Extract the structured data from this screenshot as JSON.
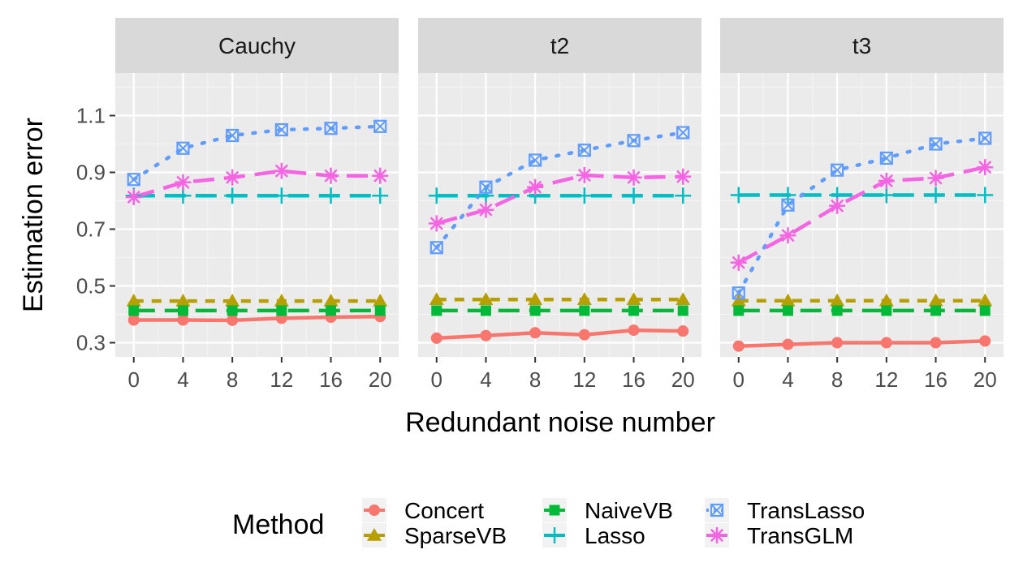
{
  "chart_data": {
    "type": "line",
    "xlabel": "Redundant noise number",
    "ylabel": "Estimation error",
    "x": [
      0,
      4,
      8,
      12,
      16,
      20
    ],
    "x_ticks": [
      "0",
      "4",
      "8",
      "12",
      "16",
      "20"
    ],
    "y_ticks": [
      "0.3",
      "0.5",
      "0.7",
      "0.9",
      "1.1"
    ],
    "y_tick_values": [
      0.3,
      0.5,
      0.7,
      0.9,
      1.1
    ],
    "xlim": [
      -1.5,
      21.5
    ],
    "ylim": [
      0.25,
      1.25
    ],
    "grid": true,
    "legend": {
      "title": "Method",
      "position": "bottom",
      "entries": [
        "Concert",
        "SparseVB",
        "NaiveVB",
        "Lasso",
        "TransLasso",
        "TransGLM"
      ]
    },
    "methods": [
      {
        "name": "Concert",
        "color": "#F8766D",
        "shape": "circle",
        "linetype": "solid"
      },
      {
        "name": "SparseVB",
        "color": "#B79F00",
        "shape": "triangle",
        "linetype": "dashed"
      },
      {
        "name": "NaiveVB",
        "color": "#00BA38",
        "shape": "square",
        "linetype": "longdash"
      },
      {
        "name": "Lasso",
        "color": "#00BFC4",
        "shape": "plus",
        "linetype": "longdash"
      },
      {
        "name": "TransLasso",
        "color": "#619CFF",
        "shape": "boxx",
        "linetype": "dotted"
      },
      {
        "name": "TransGLM",
        "color": "#F564E3",
        "shape": "asterisk",
        "linetype": "longdash"
      }
    ],
    "panels": [
      {
        "label": "Cauchy",
        "series": [
          {
            "name": "Concert",
            "values": [
              0.38,
              0.38,
              0.379,
              0.386,
              0.39,
              0.392
            ]
          },
          {
            "name": "SparseVB",
            "values": [
              0.447,
              0.447,
              0.447,
              0.447,
              0.447,
              0.447
            ]
          },
          {
            "name": "NaiveVB",
            "values": [
              0.413,
              0.413,
              0.413,
              0.413,
              0.413,
              0.413
            ]
          },
          {
            "name": "Lasso",
            "values": [
              0.818,
              0.818,
              0.818,
              0.818,
              0.818,
              0.818
            ]
          },
          {
            "name": "TransLasso",
            "values": [
              0.875,
              0.985,
              1.03,
              1.05,
              1.055,
              1.062
            ]
          },
          {
            "name": "TransGLM",
            "values": [
              0.813,
              0.865,
              0.882,
              0.905,
              0.888,
              0.888
            ]
          }
        ]
      },
      {
        "label": "t2",
        "series": [
          {
            "name": "Concert",
            "values": [
              0.316,
              0.325,
              0.335,
              0.328,
              0.344,
              0.341
            ]
          },
          {
            "name": "SparseVB",
            "values": [
              0.452,
              0.452,
              0.452,
              0.452,
              0.452,
              0.452
            ]
          },
          {
            "name": "NaiveVB",
            "values": [
              0.413,
              0.413,
              0.413,
              0.413,
              0.413,
              0.413
            ]
          },
          {
            "name": "Lasso",
            "values": [
              0.818,
              0.818,
              0.818,
              0.818,
              0.818,
              0.818
            ]
          },
          {
            "name": "TransLasso",
            "values": [
              0.635,
              0.848,
              0.943,
              0.978,
              1.012,
              1.04
            ]
          },
          {
            "name": "TransGLM",
            "values": [
              0.72,
              0.768,
              0.848,
              0.89,
              0.882,
              0.885
            ]
          }
        ]
      },
      {
        "label": "t3",
        "series": [
          {
            "name": "Concert",
            "values": [
              0.288,
              0.294,
              0.3,
              0.3,
              0.3,
              0.306
            ]
          },
          {
            "name": "SparseVB",
            "values": [
              0.448,
              0.448,
              0.448,
              0.448,
              0.448,
              0.448
            ]
          },
          {
            "name": "NaiveVB",
            "values": [
              0.413,
              0.413,
              0.413,
              0.413,
              0.413,
              0.413
            ]
          },
          {
            "name": "Lasso",
            "values": [
              0.82,
              0.82,
              0.82,
              0.82,
              0.82,
              0.82
            ]
          },
          {
            "name": "TransLasso",
            "values": [
              0.475,
              0.785,
              0.908,
              0.95,
              1.0,
              1.02
            ]
          },
          {
            "name": "TransGLM",
            "values": [
              0.582,
              0.678,
              0.782,
              0.87,
              0.88,
              0.918
            ]
          }
        ]
      }
    ]
  }
}
